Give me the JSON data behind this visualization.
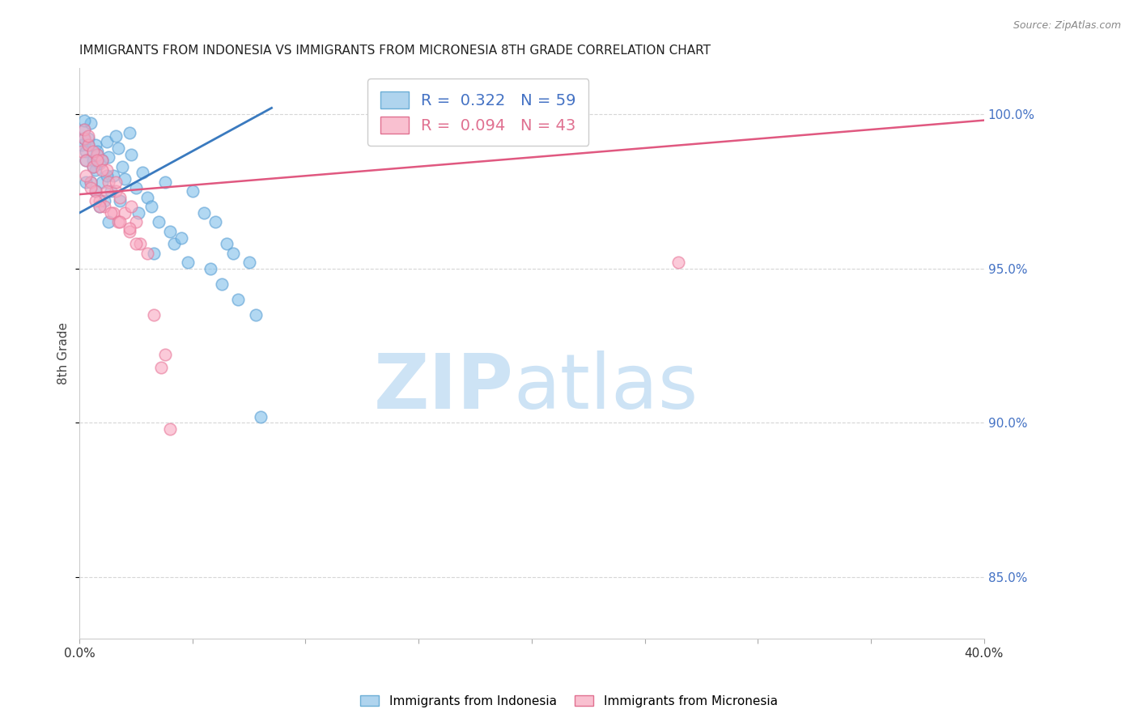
{
  "title": "IMMIGRANTS FROM INDONESIA VS IMMIGRANTS FROM MICRONESIA 8TH GRADE CORRELATION CHART",
  "source": "Source: ZipAtlas.com",
  "ylabel": "8th Grade",
  "legend_label1": "Immigrants from Indonesia",
  "legend_label2": "Immigrants from Micronesia",
  "blue_color": "#7fbfea",
  "blue_edge_color": "#5a9fd4",
  "pink_color": "#f9a8c0",
  "pink_edge_color": "#e8789a",
  "blue_line_color": "#3a7abf",
  "pink_line_color": "#e05880",
  "watermark_zip_color": "#cde3f5",
  "watermark_atlas_color": "#cde3f5",
  "xmin": 0.0,
  "xmax": 0.4,
  "ymin": 83.0,
  "ymax": 101.5,
  "blue_R": 0.322,
  "blue_N": 59,
  "pink_R": 0.094,
  "pink_N": 43,
  "blue_line_x": [
    0.0,
    0.085
  ],
  "blue_line_y": [
    96.8,
    100.2
  ],
  "pink_line_x": [
    0.0,
    0.4
  ],
  "pink_line_y": [
    97.4,
    99.8
  ],
  "indonesia_x": [
    0.001,
    0.002,
    0.003,
    0.004,
    0.005,
    0.006,
    0.007,
    0.007,
    0.008,
    0.009,
    0.01,
    0.012,
    0.013,
    0.014,
    0.015,
    0.016,
    0.017,
    0.018,
    0.019,
    0.02,
    0.022,
    0.023,
    0.025,
    0.026,
    0.028,
    0.03,
    0.032,
    0.033,
    0.035,
    0.038,
    0.04,
    0.042,
    0.045,
    0.048,
    0.05,
    0.055,
    0.058,
    0.06,
    0.063,
    0.065,
    0.068,
    0.07,
    0.075,
    0.078,
    0.08,
    0.002,
    0.003,
    0.004,
    0.005,
    0.006,
    0.007,
    0.008,
    0.009,
    0.01,
    0.011,
    0.012,
    0.013,
    0.002,
    0.003
  ],
  "indonesia_y": [
    99.0,
    99.5,
    98.8,
    99.2,
    99.7,
    98.5,
    99.0,
    98.2,
    98.7,
    98.4,
    97.8,
    99.1,
    98.6,
    97.5,
    98.0,
    99.3,
    98.9,
    97.2,
    98.3,
    97.9,
    99.4,
    98.7,
    97.6,
    96.8,
    98.1,
    97.3,
    97.0,
    95.5,
    96.5,
    97.8,
    96.2,
    95.8,
    96.0,
    95.2,
    97.5,
    96.8,
    95.0,
    96.5,
    94.5,
    95.8,
    95.5,
    94.0,
    95.2,
    93.5,
    90.2,
    99.8,
    98.5,
    99.0,
    97.8,
    98.3,
    97.5,
    98.8,
    97.0,
    98.5,
    97.2,
    98.0,
    96.5,
    99.2,
    97.8
  ],
  "micronesia_x": [
    0.001,
    0.002,
    0.003,
    0.004,
    0.005,
    0.006,
    0.007,
    0.008,
    0.009,
    0.01,
    0.011,
    0.012,
    0.013,
    0.015,
    0.016,
    0.017,
    0.018,
    0.02,
    0.022,
    0.023,
    0.025,
    0.027,
    0.03,
    0.033,
    0.036,
    0.038,
    0.04,
    0.002,
    0.003,
    0.004,
    0.005,
    0.006,
    0.007,
    0.008,
    0.009,
    0.01,
    0.012,
    0.014,
    0.016,
    0.018,
    0.265,
    0.022,
    0.025
  ],
  "micronesia_y": [
    98.8,
    99.2,
    98.5,
    99.0,
    97.8,
    98.3,
    97.5,
    98.7,
    97.2,
    98.5,
    97.0,
    98.2,
    97.8,
    96.8,
    97.5,
    96.5,
    97.3,
    96.8,
    96.2,
    97.0,
    96.5,
    95.8,
    95.5,
    93.5,
    91.8,
    92.2,
    89.8,
    99.5,
    98.0,
    99.3,
    97.6,
    98.8,
    97.2,
    98.5,
    97.0,
    98.2,
    97.5,
    96.8,
    97.8,
    96.5,
    95.2,
    96.3,
    95.8
  ]
}
